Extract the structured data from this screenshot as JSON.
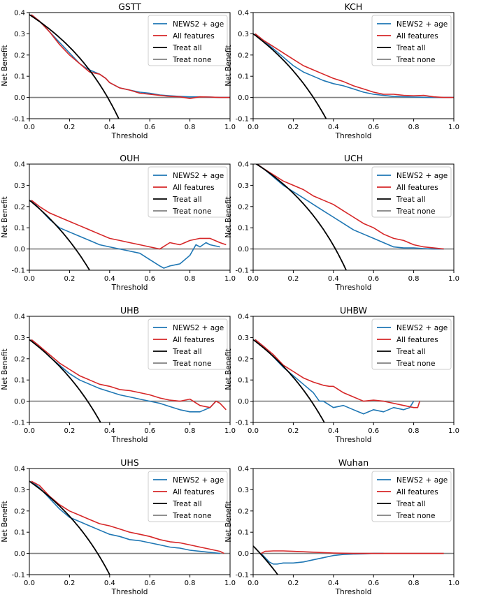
{
  "colors": {
    "news2_age": "#1f77b4",
    "all_features": "#d62728",
    "treat_all": "#000000",
    "treat_none": "#808080"
  },
  "chart_data": [
    {
      "type": "line",
      "title": "GSTT",
      "xlabel": "Threshold",
      "ylabel": "Net Benefit",
      "xlim": [
        0,
        1
      ],
      "ylim": [
        -0.1,
        0.4
      ],
      "xticks": [
        "0.0",
        "0.2",
        "0.4",
        "0.6",
        "0.8",
        "1.0"
      ],
      "yticks": [
        "-0.1",
        "0.0",
        "0.1",
        "0.2",
        "0.3",
        "0.4"
      ],
      "legend": [
        "NEWS2 + age",
        "All features",
        "Treat all",
        "Treat none"
      ],
      "legend_position": "top-right",
      "series": [
        {
          "name": "NEWS2 + age",
          "x": [
            0.01,
            0.05,
            0.1,
            0.15,
            0.2,
            0.25,
            0.28,
            0.3,
            0.35,
            0.38,
            0.4,
            0.45,
            0.5,
            0.55,
            0.6,
            0.65,
            0.7,
            0.75,
            0.8,
            0.85,
            0.9,
            0.95,
            1.0
          ],
          "y": [
            0.39,
            0.36,
            0.31,
            0.26,
            0.21,
            0.16,
            0.14,
            0.13,
            0.11,
            0.09,
            0.07,
            0.045,
            0.035,
            0.025,
            0.02,
            0.012,
            0.008,
            0.005,
            0.003,
            0.003,
            0.002,
            0.0,
            0.0
          ]
        },
        {
          "name": "All features",
          "x": [
            0.01,
            0.05,
            0.1,
            0.15,
            0.2,
            0.25,
            0.3,
            0.35,
            0.38,
            0.4,
            0.45,
            0.5,
            0.55,
            0.6,
            0.65,
            0.7,
            0.75,
            0.8,
            0.85,
            0.9,
            0.95,
            1.0
          ],
          "y": [
            0.39,
            0.36,
            0.31,
            0.25,
            0.2,
            0.16,
            0.12,
            0.11,
            0.09,
            0.07,
            0.045,
            0.035,
            0.02,
            0.015,
            0.01,
            0.005,
            0.003,
            -0.005,
            0.003,
            0.002,
            0.0,
            0.0
          ]
        },
        {
          "name": "Treat all",
          "prevalence": 0.39
        },
        {
          "name": "Treat none",
          "y": 0
        }
      ]
    },
    {
      "type": "line",
      "title": "KCH",
      "xlabel": "Threshold",
      "ylabel": "Net Benefit",
      "xlim": [
        0,
        1
      ],
      "ylim": [
        -0.1,
        0.4
      ],
      "xticks": [
        "0.0",
        "0.2",
        "0.4",
        "0.6",
        "0.8",
        "1.0"
      ],
      "yticks": [
        "-0.1",
        "0.0",
        "0.1",
        "0.2",
        "0.3",
        "0.4"
      ],
      "legend": [
        "NEWS2 + age",
        "All features",
        "Treat all",
        "Treat none"
      ],
      "legend_position": "top-right",
      "series": [
        {
          "name": "NEWS2 + age",
          "x": [
            0.01,
            0.05,
            0.1,
            0.15,
            0.2,
            0.25,
            0.3,
            0.35,
            0.4,
            0.45,
            0.5,
            0.55,
            0.6,
            0.65,
            0.7,
            0.75,
            0.8,
            0.85,
            0.9,
            0.95,
            1.0
          ],
          "y": [
            0.3,
            0.27,
            0.23,
            0.19,
            0.15,
            0.12,
            0.1,
            0.08,
            0.065,
            0.055,
            0.04,
            0.025,
            0.015,
            0.01,
            0.005,
            0.003,
            0.002,
            0.001,
            0.0,
            0.0,
            0.0
          ]
        },
        {
          "name": "All features",
          "x": [
            0.01,
            0.05,
            0.1,
            0.15,
            0.2,
            0.25,
            0.3,
            0.35,
            0.4,
            0.45,
            0.5,
            0.55,
            0.6,
            0.65,
            0.7,
            0.75,
            0.8,
            0.85,
            0.9,
            0.95,
            1.0
          ],
          "y": [
            0.3,
            0.27,
            0.24,
            0.21,
            0.18,
            0.15,
            0.13,
            0.11,
            0.09,
            0.075,
            0.055,
            0.04,
            0.025,
            0.015,
            0.015,
            0.01,
            0.008,
            0.01,
            0.003,
            0.0,
            0.0
          ]
        },
        {
          "name": "Treat all",
          "prevalence": 0.3
        },
        {
          "name": "Treat none",
          "y": 0
        }
      ]
    },
    {
      "type": "line",
      "title": "OUH",
      "xlabel": "Threshold",
      "ylabel": "Net Benefit",
      "xlim": [
        0,
        1
      ],
      "ylim": [
        -0.1,
        0.4
      ],
      "xticks": [
        "0.0",
        "0.2",
        "0.4",
        "0.6",
        "0.8",
        "1.0"
      ],
      "yticks": [
        "-0.1",
        "0.0",
        "0.1",
        "0.2",
        "0.3",
        "0.4"
      ],
      "legend": [
        "NEWS2 + age",
        "All features",
        "Treat all",
        "Treat none"
      ],
      "legend_position": "top-right",
      "series": [
        {
          "name": "NEWS2 + age",
          "x": [
            0.01,
            0.05,
            0.1,
            0.15,
            0.2,
            0.25,
            0.3,
            0.35,
            0.4,
            0.45,
            0.5,
            0.55,
            0.6,
            0.65,
            0.67,
            0.7,
            0.75,
            0.8,
            0.83,
            0.85,
            0.88,
            0.9,
            0.95
          ],
          "y": [
            0.23,
            0.19,
            0.14,
            0.1,
            0.08,
            0.06,
            0.04,
            0.02,
            0.01,
            0.0,
            -0.01,
            -0.02,
            -0.05,
            -0.08,
            -0.09,
            -0.08,
            -0.07,
            -0.03,
            0.02,
            0.01,
            0.03,
            0.02,
            0.01
          ]
        },
        {
          "name": "All features",
          "x": [
            0.01,
            0.05,
            0.1,
            0.15,
            0.2,
            0.25,
            0.3,
            0.35,
            0.4,
            0.45,
            0.5,
            0.55,
            0.6,
            0.65,
            0.7,
            0.75,
            0.8,
            0.85,
            0.9,
            0.95,
            0.98
          ],
          "y": [
            0.23,
            0.2,
            0.17,
            0.15,
            0.13,
            0.11,
            0.09,
            0.07,
            0.05,
            0.04,
            0.03,
            0.02,
            0.01,
            0.0,
            0.03,
            0.02,
            0.04,
            0.05,
            0.05,
            0.03,
            0.02
          ]
        },
        {
          "name": "Treat all",
          "prevalence": 0.23
        },
        {
          "name": "Treat none",
          "y": 0
        }
      ]
    },
    {
      "type": "line",
      "title": "UCH",
      "xlabel": "Threshold",
      "ylabel": "Net Benefit",
      "xlim": [
        0,
        1
      ],
      "ylim": [
        -0.1,
        0.4
      ],
      "xticks": [
        "0.0",
        "0.2",
        "0.4",
        "0.6",
        "0.8",
        "1.0"
      ],
      "yticks": [
        "-0.1",
        "0.0",
        "0.1",
        "0.2",
        "0.3",
        "0.4"
      ],
      "legend": [
        "NEWS2 + age",
        "All features",
        "Treat all",
        "Treat none"
      ],
      "legend_position": "top-right",
      "series": [
        {
          "name": "NEWS2 + age",
          "x": [
            0.02,
            0.05,
            0.1,
            0.15,
            0.2,
            0.25,
            0.3,
            0.35,
            0.4,
            0.45,
            0.5,
            0.55,
            0.6,
            0.65,
            0.7,
            0.75,
            0.8,
            0.85,
            0.9,
            0.95
          ],
          "y": [
            0.4,
            0.38,
            0.34,
            0.3,
            0.27,
            0.24,
            0.21,
            0.18,
            0.15,
            0.12,
            0.09,
            0.07,
            0.05,
            0.03,
            0.01,
            0.005,
            0.005,
            0.002,
            0.0,
            0.0
          ]
        },
        {
          "name": "All features",
          "x": [
            0.02,
            0.05,
            0.1,
            0.15,
            0.2,
            0.25,
            0.3,
            0.35,
            0.4,
            0.45,
            0.5,
            0.55,
            0.6,
            0.65,
            0.7,
            0.75,
            0.8,
            0.85,
            0.9,
            0.95
          ],
          "y": [
            0.4,
            0.38,
            0.35,
            0.32,
            0.3,
            0.28,
            0.25,
            0.23,
            0.21,
            0.18,
            0.15,
            0.12,
            0.1,
            0.07,
            0.05,
            0.04,
            0.02,
            0.01,
            0.005,
            0.0
          ]
        },
        {
          "name": "Treat all",
          "prevalence": 0.41
        },
        {
          "name": "Treat none",
          "y": 0
        }
      ]
    },
    {
      "type": "line",
      "title": "UHB",
      "xlabel": "Threshold",
      "ylabel": "Net Benefit",
      "xlim": [
        0,
        1
      ],
      "ylim": [
        -0.1,
        0.4
      ],
      "xticks": [
        "0.0",
        "0.2",
        "0.4",
        "0.6",
        "0.8",
        "1.0"
      ],
      "yticks": [
        "-0.1",
        "0.0",
        "0.1",
        "0.2",
        "0.3",
        "0.4"
      ],
      "legend": [
        "NEWS2 + age",
        "All features",
        "Treat all",
        "Treat none"
      ],
      "legend_position": "top-right",
      "series": [
        {
          "name": "NEWS2 + age",
          "x": [
            0.01,
            0.05,
            0.1,
            0.15,
            0.2,
            0.25,
            0.3,
            0.35,
            0.4,
            0.45,
            0.5,
            0.55,
            0.6,
            0.65,
            0.7,
            0.75,
            0.8,
            0.85,
            0.9,
            0.93
          ],
          "y": [
            0.29,
            0.26,
            0.21,
            0.17,
            0.13,
            0.1,
            0.08,
            0.06,
            0.045,
            0.03,
            0.02,
            0.01,
            0.0,
            -0.01,
            -0.025,
            -0.04,
            -0.05,
            -0.05,
            -0.03,
            0.0
          ]
        },
        {
          "name": "All features",
          "x": [
            0.01,
            0.05,
            0.1,
            0.15,
            0.2,
            0.25,
            0.3,
            0.35,
            0.4,
            0.45,
            0.5,
            0.55,
            0.6,
            0.65,
            0.7,
            0.75,
            0.8,
            0.85,
            0.9,
            0.93,
            0.95,
            0.98
          ],
          "y": [
            0.29,
            0.26,
            0.22,
            0.18,
            0.15,
            0.12,
            0.1,
            0.08,
            0.07,
            0.055,
            0.05,
            0.04,
            0.03,
            0.015,
            0.005,
            0.0,
            0.01,
            -0.02,
            -0.03,
            0.0,
            -0.01,
            -0.04
          ]
        },
        {
          "name": "Treat all",
          "prevalence": 0.29
        },
        {
          "name": "Treat none",
          "y": 0
        }
      ]
    },
    {
      "type": "line",
      "title": "UHBW",
      "xlabel": "Threshold",
      "ylabel": "Net Benefit",
      "xlim": [
        0,
        1
      ],
      "ylim": [
        -0.1,
        0.4
      ],
      "xticks": [
        "0.0",
        "0.2",
        "0.4",
        "0.6",
        "0.8",
        "1.0"
      ],
      "yticks": [
        "-0.1",
        "0.0",
        "0.1",
        "0.2",
        "0.3",
        "0.4"
      ],
      "legend": [
        "NEWS2 + age",
        "All features",
        "Treat all",
        "Treat none"
      ],
      "legend_position": "top-right",
      "series": [
        {
          "name": "NEWS2 + age",
          "x": [
            0.01,
            0.05,
            0.1,
            0.15,
            0.2,
            0.25,
            0.3,
            0.33,
            0.35,
            0.4,
            0.45,
            0.5,
            0.55,
            0.6,
            0.65,
            0.7,
            0.75,
            0.78,
            0.8
          ],
          "y": [
            0.29,
            0.26,
            0.21,
            0.16,
            0.12,
            0.08,
            0.04,
            0.0,
            0.0,
            -0.03,
            -0.02,
            -0.04,
            -0.06,
            -0.04,
            -0.05,
            -0.03,
            -0.04,
            -0.03,
            0.0
          ]
        },
        {
          "name": "All features",
          "x": [
            0.01,
            0.05,
            0.1,
            0.15,
            0.2,
            0.25,
            0.3,
            0.35,
            0.38,
            0.4,
            0.45,
            0.5,
            0.55,
            0.6,
            0.65,
            0.7,
            0.75,
            0.8,
            0.82,
            0.83
          ],
          "y": [
            0.29,
            0.26,
            0.22,
            0.17,
            0.14,
            0.11,
            0.09,
            0.075,
            0.07,
            0.07,
            0.04,
            0.02,
            0.0,
            0.005,
            0.0,
            -0.01,
            -0.02,
            -0.03,
            -0.03,
            0.0
          ]
        },
        {
          "name": "Treat all",
          "prevalence": 0.29
        },
        {
          "name": "Treat none",
          "y": 0
        }
      ]
    },
    {
      "type": "line",
      "title": "UHS",
      "xlabel": "Threshold",
      "ylabel": "Net Benefit",
      "xlim": [
        0,
        1
      ],
      "ylim": [
        -0.1,
        0.4
      ],
      "xticks": [
        "0.0",
        "0.2",
        "0.4",
        "0.6",
        "0.8",
        "1.0"
      ],
      "yticks": [
        "-0.1",
        "0.0",
        "0.1",
        "0.2",
        "0.3",
        "0.4"
      ],
      "legend": [
        "NEWS2 + age",
        "All features",
        "Treat all",
        "Treat none"
      ],
      "legend_position": "top-right",
      "series": [
        {
          "name": "NEWS2 + age",
          "x": [
            0.01,
            0.05,
            0.1,
            0.15,
            0.2,
            0.25,
            0.3,
            0.35,
            0.4,
            0.45,
            0.5,
            0.55,
            0.6,
            0.65,
            0.7,
            0.75,
            0.8,
            0.85,
            0.9,
            0.95
          ],
          "y": [
            0.34,
            0.31,
            0.26,
            0.21,
            0.17,
            0.15,
            0.13,
            0.11,
            0.09,
            0.08,
            0.065,
            0.06,
            0.05,
            0.04,
            0.03,
            0.025,
            0.015,
            0.01,
            0.005,
            0.0
          ]
        },
        {
          "name": "All features",
          "x": [
            0.01,
            0.05,
            0.1,
            0.15,
            0.2,
            0.25,
            0.3,
            0.35,
            0.4,
            0.45,
            0.5,
            0.55,
            0.6,
            0.65,
            0.7,
            0.75,
            0.8,
            0.85,
            0.9,
            0.95,
            0.97
          ],
          "y": [
            0.34,
            0.32,
            0.27,
            0.23,
            0.2,
            0.18,
            0.16,
            0.14,
            0.13,
            0.115,
            0.1,
            0.09,
            0.08,
            0.065,
            0.055,
            0.05,
            0.04,
            0.03,
            0.02,
            0.01,
            0.0
          ]
        },
        {
          "name": "Treat all",
          "prevalence": 0.34
        },
        {
          "name": "Treat none",
          "y": 0
        }
      ]
    },
    {
      "type": "line",
      "title": "Wuhan",
      "xlabel": "Threshold",
      "ylabel": "Net Benefit",
      "xlim": [
        0,
        1
      ],
      "ylim": [
        -0.1,
        0.4
      ],
      "xticks": [
        "0.0",
        "0.2",
        "0.4",
        "0.6",
        "0.8",
        "1.0"
      ],
      "yticks": [
        "-0.1",
        "0.0",
        "0.1",
        "0.2",
        "0.3",
        "0.4"
      ],
      "legend": [
        "NEWS2 + age",
        "All features",
        "Treat all",
        "Treat none"
      ],
      "legend_position": "top-right",
      "series": [
        {
          "name": "NEWS2 + age",
          "x": [
            0.04,
            0.06,
            0.08,
            0.1,
            0.12,
            0.15,
            0.2,
            0.25,
            0.3,
            0.35,
            0.4,
            0.45,
            0.5,
            0.55,
            0.6,
            0.65
          ],
          "y": [
            0.0,
            -0.02,
            -0.04,
            -0.05,
            -0.05,
            -0.045,
            -0.045,
            -0.04,
            -0.03,
            -0.02,
            -0.01,
            -0.005,
            -0.003,
            -0.002,
            0.0,
            0.0
          ]
        },
        {
          "name": "All features",
          "x": [
            0.04,
            0.06,
            0.1,
            0.15,
            0.2,
            0.25,
            0.3,
            0.35,
            0.4,
            0.45,
            0.5,
            0.6,
            0.7,
            0.8,
            0.9,
            0.95
          ],
          "y": [
            0.0,
            0.01,
            0.012,
            0.012,
            0.01,
            0.008,
            0.006,
            0.004,
            0.002,
            0.001,
            0.0,
            0.0,
            0.0,
            0.0,
            0.0,
            0.0
          ]
        },
        {
          "name": "Treat all",
          "prevalence": 0.035
        },
        {
          "name": "Treat none",
          "y": 0
        }
      ]
    }
  ]
}
